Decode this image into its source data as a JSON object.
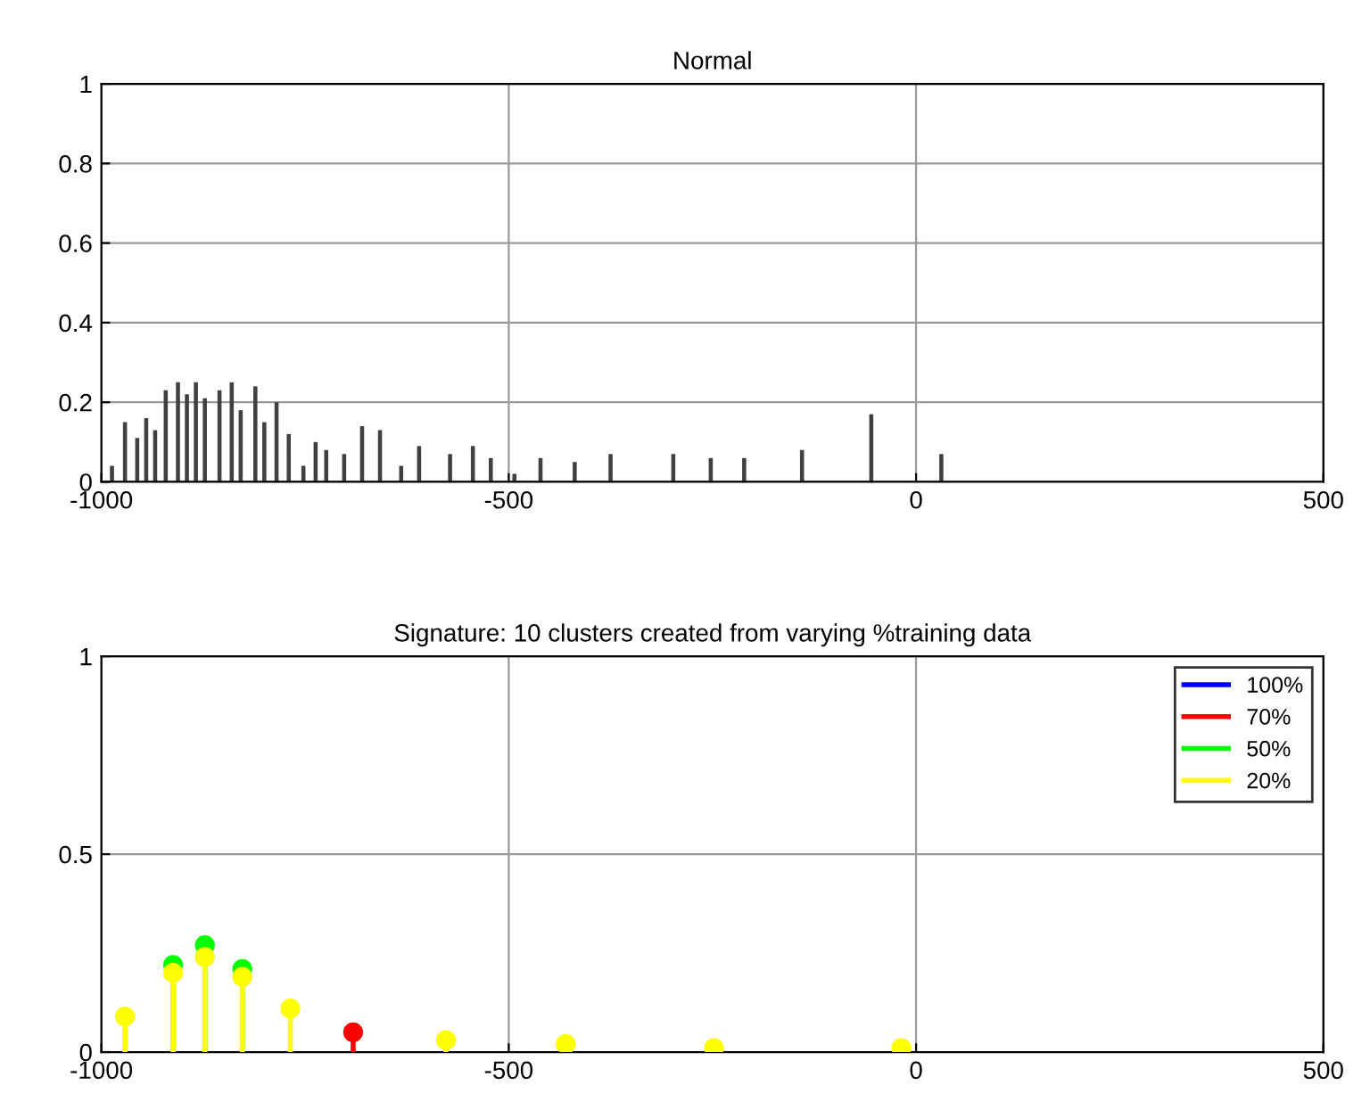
{
  "chart_data": [
    {
      "type": "bar",
      "title": "Normal",
      "color": "#404040",
      "x": [
        -987,
        -971,
        -956,
        -945,
        -934,
        -921,
        -906,
        -895,
        -884,
        -873,
        -855,
        -840,
        -829,
        -811,
        -800,
        -785,
        -770,
        -752,
        -737,
        -724,
        -702,
        -680,
        -658,
        -632,
        -610,
        -572,
        -544,
        -522,
        -493,
        -461,
        -419,
        -375,
        -298,
        -252,
        -211,
        -140,
        -55,
        31
      ],
      "values": [
        0.04,
        0.15,
        0.11,
        0.16,
        0.13,
        0.23,
        0.25,
        0.22,
        0.25,
        0.21,
        0.23,
        0.25,
        0.18,
        0.24,
        0.15,
        0.2,
        0.12,
        0.04,
        0.1,
        0.08,
        0.07,
        0.14,
        0.13,
        0.04,
        0.09,
        0.07,
        0.09,
        0.06,
        0.02,
        0.06,
        0.05,
        0.07,
        0.07,
        0.06,
        0.06,
        0.08,
        0.17,
        0.07
      ],
      "xlim": [
        -1000,
        500
      ],
      "xticks": [
        -1000,
        -500,
        0,
        500
      ],
      "ylim": [
        0,
        1
      ],
      "yticks": [
        0,
        0.2,
        0.4,
        0.6,
        0.8,
        1
      ],
      "grid": true
    },
    {
      "type": "lollipop",
      "title": "Signature: 10 clusters created from varying %training data",
      "marker": "circle",
      "legend": "top right",
      "x": [
        -971,
        -912,
        -873,
        -827,
        -768,
        -691,
        -577,
        -430,
        -248,
        -18
      ],
      "series": [
        {
          "name": "100%",
          "color": "#0000ff",
          "values": [
            null,
            null,
            null,
            null,
            null,
            null,
            null,
            null,
            null,
            null
          ]
        },
        {
          "name": "70%",
          "color": "#ff0000",
          "values": [
            null,
            null,
            null,
            null,
            null,
            0.05,
            null,
            null,
            null,
            null
          ]
        },
        {
          "name": "50%",
          "color": "#00ff00",
          "values": [
            null,
            0.22,
            0.27,
            0.21,
            null,
            null,
            null,
            null,
            null,
            null
          ]
        },
        {
          "name": "20%",
          "color": "#ffff00",
          "values": [
            0.09,
            0.2,
            0.24,
            0.19,
            0.11,
            null,
            0.03,
            0.02,
            0.01,
            0.01
          ]
        }
      ],
      "xlim": [
        -1000,
        500
      ],
      "xticks": [
        -1000,
        -500,
        0,
        500
      ],
      "ylim": [
        0,
        1
      ],
      "yticks": [
        0,
        0.5,
        1
      ],
      "grid": true
    }
  ]
}
